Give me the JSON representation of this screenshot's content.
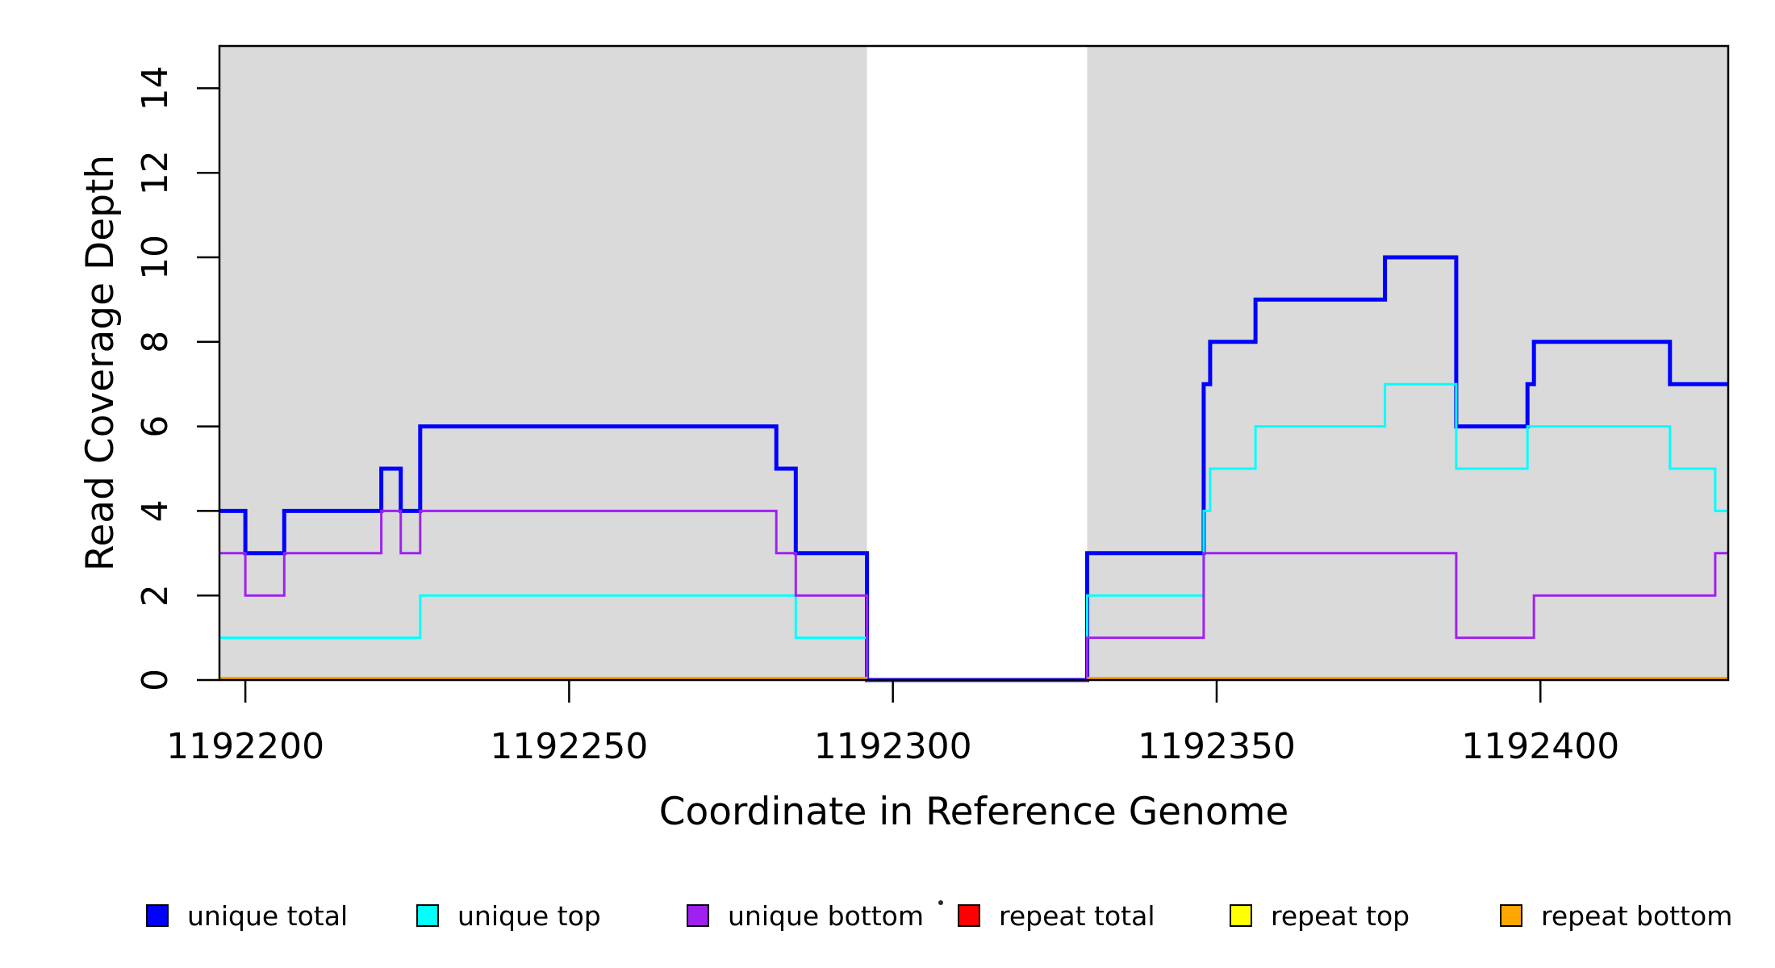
{
  "chart_data": {
    "type": "line",
    "subtype": "step-coverage",
    "title": "",
    "xlabel": "Coordinate in Reference Genome",
    "ylabel": "Read Coverage Depth",
    "xlim": [
      1192196,
      1192429
    ],
    "ylim": [
      0,
      15
    ],
    "xticks": [
      1192200,
      1192250,
      1192300,
      1192350,
      1192400
    ],
    "yticks": [
      0,
      2,
      4,
      6,
      8,
      10,
      12,
      14
    ],
    "grid": false,
    "background_color": "#ffffff",
    "shaded_region_color": "#DADADA",
    "shaded_regions": [
      {
        "x_start": 1192196,
        "x_end": 1192296
      },
      {
        "x_start": 1192330,
        "x_end": 1192429
      }
    ],
    "uncovered_gap_region": {
      "x_start": 1192296,
      "x_end": 1192330,
      "value": 0
    },
    "series": [
      {
        "name": "unique total",
        "color": "#0000FF",
        "line_width": 5,
        "steps": [
          [
            1192196,
            4
          ],
          [
            1192200,
            3
          ],
          [
            1192206,
            4
          ],
          [
            1192221,
            5
          ],
          [
            1192224,
            4
          ],
          [
            1192227,
            6
          ],
          [
            1192282,
            5
          ],
          [
            1192285,
            3
          ],
          [
            1192296,
            0
          ],
          [
            1192330,
            3
          ],
          [
            1192348,
            7
          ],
          [
            1192349,
            8
          ],
          [
            1192356,
            9
          ],
          [
            1192376,
            10
          ],
          [
            1192387,
            6
          ],
          [
            1192398,
            7
          ],
          [
            1192399,
            8
          ],
          [
            1192420,
            7
          ],
          [
            1192429,
            7
          ]
        ]
      },
      {
        "name": "unique top",
        "color": "#00FFFF",
        "line_width": 3,
        "steps": [
          [
            1192196,
            1
          ],
          [
            1192227,
            2
          ],
          [
            1192285,
            1
          ],
          [
            1192296,
            0
          ],
          [
            1192330,
            2
          ],
          [
            1192348,
            4
          ],
          [
            1192349,
            5
          ],
          [
            1192356,
            6
          ],
          [
            1192376,
            7
          ],
          [
            1192387,
            5
          ],
          [
            1192398,
            6
          ],
          [
            1192420,
            5
          ],
          [
            1192427,
            4
          ],
          [
            1192429,
            4
          ]
        ]
      },
      {
        "name": "unique bottom",
        "color": "#A020F0",
        "line_width": 3,
        "steps": [
          [
            1192196,
            3
          ],
          [
            1192200,
            2
          ],
          [
            1192206,
            3
          ],
          [
            1192221,
            4
          ],
          [
            1192224,
            3
          ],
          [
            1192227,
            4
          ],
          [
            1192282,
            3
          ],
          [
            1192285,
            2
          ],
          [
            1192296,
            0
          ],
          [
            1192330,
            1
          ],
          [
            1192348,
            3
          ],
          [
            1192387,
            1
          ],
          [
            1192399,
            2
          ],
          [
            1192427,
            3
          ],
          [
            1192429,
            3
          ]
        ]
      },
      {
        "name": "repeat total",
        "color": "#FF0000",
        "line_width": 4,
        "steps_segments": [
          [
            [
              1192196,
              0
            ],
            [
              1192296,
              0
            ]
          ],
          [
            [
              1192330,
              0
            ],
            [
              1192429,
              0
            ]
          ]
        ]
      },
      {
        "name": "repeat top",
        "color": "#FFFF00",
        "line_width": 4,
        "steps_segments": [
          [
            [
              1192196,
              0
            ],
            [
              1192296,
              0
            ]
          ],
          [
            [
              1192330,
              0
            ],
            [
              1192429,
              0
            ]
          ]
        ]
      },
      {
        "name": "repeat bottom",
        "color": "#FFA500",
        "line_width": 4,
        "steps_segments": [
          [
            [
              1192196,
              0
            ],
            [
              1192296,
              0
            ]
          ],
          [
            [
              1192330,
              0
            ],
            [
              1192429,
              0
            ]
          ]
        ]
      }
    ],
    "legend": {
      "position": "bottom",
      "entries": [
        {
          "label": "unique total",
          "color": "#0000FF"
        },
        {
          "label": "unique top",
          "color": "#00FFFF"
        },
        {
          "label": "unique bottom",
          "color": "#A020F0"
        },
        {
          "label": "repeat total",
          "color": "#FF0000"
        },
        {
          "label": "repeat top",
          "color": "#FFFF00"
        },
        {
          "label": "repeat bottom",
          "color": "#FFA500"
        }
      ]
    }
  }
}
